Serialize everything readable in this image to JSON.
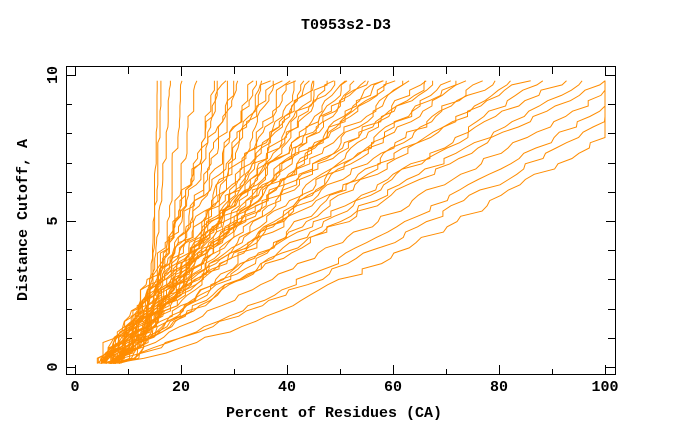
{
  "chart_data": {
    "type": "line",
    "title": "T0953s2-D3",
    "xlabel": "Percent of Residues (CA)",
    "ylabel": "Distance Cutoff, A",
    "xlim": [
      0,
      100
    ],
    "ylim": [
      0,
      10
    ],
    "x_ticks": [
      0,
      10,
      20,
      30,
      40,
      50,
      60,
      70,
      80,
      90,
      100
    ],
    "x_major_ticks": [
      0,
      20,
      40,
      60,
      80,
      100
    ],
    "y_ticks": [
      0,
      1,
      2,
      3,
      4,
      5,
      6,
      7,
      8,
      9,
      10
    ],
    "y_major_ticks": [
      0,
      5,
      10
    ],
    "grid": false,
    "legend": false,
    "frame": true,
    "line_color": "#ff8c00",
    "axis_color": "#000000",
    "background_color": "#ffffff",
    "curve_base_cutoff": 0.12,
    "curve_top_cutoff": 9.8,
    "curve_step": 0.18,
    "series_semantics": "Each entry is one model curve: percent of residues (x) fit under distance cutoff (y); start=percent at cutoff ~0, end=percent reached at cutoff 9.8 (clamped to 100), shape=power-law bend of the curve.",
    "series": [
      {
        "start": 7.5,
        "end": 15.2,
        "shape": 0.15
      },
      {
        "start": 8.2,
        "end": 15.8,
        "shape": 0.18
      },
      {
        "start": 6.8,
        "end": 17.5,
        "shape": 0.3
      },
      {
        "start": 7.0,
        "end": 19.5,
        "shape": 0.28
      },
      {
        "start": 5.8,
        "end": 22,
        "shape": 0.4
      },
      {
        "start": 4.5,
        "end": 26,
        "shape": 0.6
      },
      {
        "start": 6.2,
        "end": 27,
        "shape": 0.72
      },
      {
        "start": 5.3,
        "end": 28,
        "shape": 0.8
      },
      {
        "start": 5.0,
        "end": 29,
        "shape": 0.55
      },
      {
        "start": 7.4,
        "end": 30,
        "shape": 0.9
      },
      {
        "start": 3.8,
        "end": 31,
        "shape": 0.7
      },
      {
        "start": 6.6,
        "end": 33,
        "shape": 0.6
      },
      {
        "start": 5.4,
        "end": 34,
        "shape": 0.85
      },
      {
        "start": 8.0,
        "end": 35,
        "shape": 0.7
      },
      {
        "start": 6.9,
        "end": 36,
        "shape": 0.75
      },
      {
        "start": 4.2,
        "end": 37,
        "shape": 0.95
      },
      {
        "start": 6.0,
        "end": 38,
        "shape": 0.65
      },
      {
        "start": 7.2,
        "end": 40,
        "shape": 0.8
      },
      {
        "start": 5.6,
        "end": 41,
        "shape": 1.0
      },
      {
        "start": 6.3,
        "end": 42,
        "shape": 0.85
      },
      {
        "start": 4.8,
        "end": 43,
        "shape": 0.7
      },
      {
        "start": 6.4,
        "end": 44,
        "shape": 0.9
      },
      {
        "start": 5.2,
        "end": 45,
        "shape": 1.1
      },
      {
        "start": 7.6,
        "end": 46,
        "shape": 0.8
      },
      {
        "start": 4.4,
        "end": 47,
        "shape": 0.9
      },
      {
        "start": 4.6,
        "end": 48,
        "shape": 1.0
      },
      {
        "start": 6.8,
        "end": 49,
        "shape": 1.2
      },
      {
        "start": 5.8,
        "end": 51,
        "shape": 0.9
      },
      {
        "start": 7.0,
        "end": 52,
        "shape": 1.15
      },
      {
        "start": 7.7,
        "end": 53,
        "shape": 1.05
      },
      {
        "start": 4.6,
        "end": 54,
        "shape": 1.0
      },
      {
        "start": 6.2,
        "end": 55,
        "shape": 1.3
      },
      {
        "start": 5.0,
        "end": 57,
        "shape": 0.95
      },
      {
        "start": 7.8,
        "end": 58,
        "shape": 1.1
      },
      {
        "start": 5.1,
        "end": 59,
        "shape": 1.1
      },
      {
        "start": 4.0,
        "end": 60,
        "shape": 1.25
      },
      {
        "start": 6.6,
        "end": 62,
        "shape": 1.0
      },
      {
        "start": 5.4,
        "end": 63,
        "shape": 1.2
      },
      {
        "start": 7.2,
        "end": 65,
        "shape": 0.9
      },
      {
        "start": 4.8,
        "end": 67,
        "shape": 1.15
      },
      {
        "start": 6.0,
        "end": 68,
        "shape": 1.3
      },
      {
        "start": 5.6,
        "end": 70,
        "shape": 1.0
      },
      {
        "start": 7.4,
        "end": 72,
        "shape": 1.2
      },
      {
        "start": 4.2,
        "end": 74,
        "shape": 1.1
      },
      {
        "start": 6.4,
        "end": 76,
        "shape": 0.95
      },
      {
        "start": 5.0,
        "end": 79,
        "shape": 1.15
      },
      {
        "start": 7.0,
        "end": 82,
        "shape": 1.05
      },
      {
        "start": 4.6,
        "end": 85,
        "shape": 1.2
      },
      {
        "start": 6.8,
        "end": 88,
        "shape": 1.0
      },
      {
        "start": 5.2,
        "end": 92,
        "shape": 1.1
      },
      {
        "start": 6.0,
        "end": 96,
        "shape": 1.05
      },
      {
        "start": 7.2,
        "end": 100,
        "shape": 1.1
      },
      {
        "start": 5.8,
        "end": 104,
        "shape": 0.95
      },
      {
        "start": 6.6,
        "end": 108,
        "shape": 0.85
      },
      {
        "start": 4.9,
        "end": 112,
        "shape": 0.8
      },
      {
        "start": 7.0,
        "end": 116,
        "shape": 0.75
      }
    ]
  }
}
